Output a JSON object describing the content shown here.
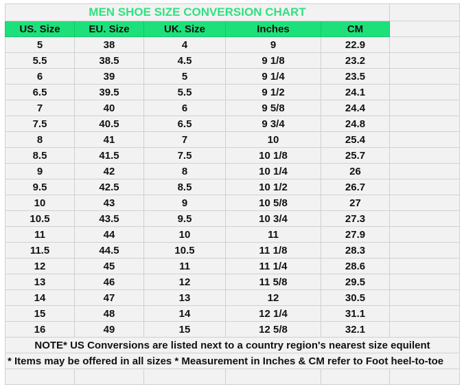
{
  "title": "MEN SHOE SIZE CONVERSION CHART",
  "colors": {
    "header_bg": "#1de07a",
    "title_text": "#2ee27f",
    "cell_bg": "#f2f2f2",
    "grid": "#d0d0d0"
  },
  "headers": [
    "US. Size",
    "EU. Size",
    "UK. Size",
    "Inches",
    "CM"
  ],
  "rows": [
    [
      "5",
      "38",
      "4",
      "9",
      "22.9"
    ],
    [
      "5.5",
      "38.5",
      "4.5",
      "9 1/8",
      "23.2"
    ],
    [
      "6",
      "39",
      "5",
      "9 1/4",
      "23.5"
    ],
    [
      "6.5",
      "39.5",
      "5.5",
      "9 1/2",
      "24.1"
    ],
    [
      "7",
      "40",
      "6",
      "9 5/8",
      "24.4"
    ],
    [
      "7.5",
      "40.5",
      "6.5",
      "9 3/4",
      "24.8"
    ],
    [
      "8",
      "41",
      "7",
      "10",
      "25.4"
    ],
    [
      "8.5",
      "41.5",
      "7.5",
      "10 1/8",
      "25.7"
    ],
    [
      "9",
      "42",
      "8",
      "10 1/4",
      "26"
    ],
    [
      "9.5",
      "42.5",
      "8.5",
      "10 1/2",
      "26.7"
    ],
    [
      "10",
      "43",
      "9",
      "10 5/8",
      "27"
    ],
    [
      "10.5",
      "43.5",
      "9.5",
      "10 3/4",
      "27.3"
    ],
    [
      "11",
      "44",
      "10",
      "11",
      "27.9"
    ],
    [
      "11.5",
      "44.5",
      "10.5",
      "11 1/8",
      "28.3"
    ],
    [
      "12",
      "45",
      "11",
      "11 1/4",
      "28.6"
    ],
    [
      "13",
      "46",
      "12",
      "11 5/8",
      "29.5"
    ],
    [
      "14",
      "47",
      "13",
      "12",
      "30.5"
    ],
    [
      "15",
      "48",
      "14",
      "12 1/4",
      "31.1"
    ],
    [
      "16",
      "49",
      "15",
      "12 5/8",
      "32.1"
    ]
  ],
  "notes": [
    "NOTE* US Conversions are listed next to a country region's nearest size equilent",
    "* Items may be offered in all sizes * Measurement in Inches & CM refer to Foot heel-to-toe"
  ]
}
